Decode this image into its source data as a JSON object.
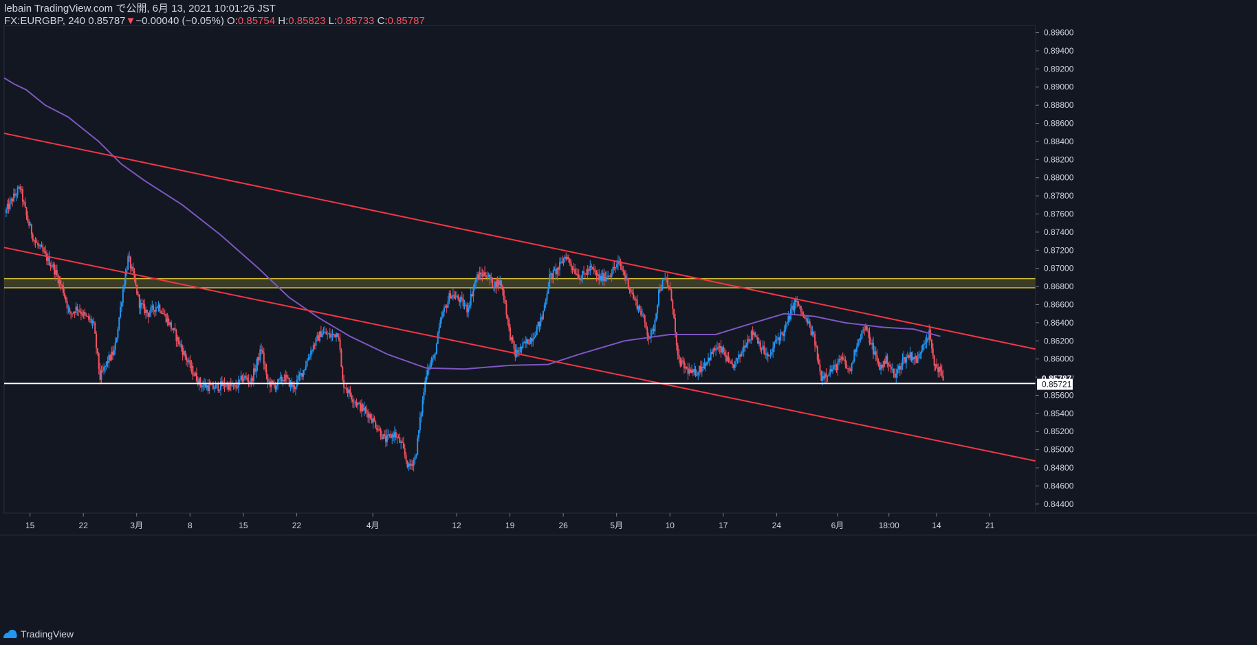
{
  "header": {
    "publish": "lebain TradingView.com で公開, 6月 13, 2021 10:01:26 JST",
    "symbol": "FX:EURGBP, 240",
    "last": "0.85787",
    "change_arrow": "▼",
    "change": "−0.00040 (−0.05%)",
    "open_label": "O:",
    "open": "0.85754",
    "high_label": "H:",
    "high": "0.85823",
    "low_label": "L:",
    "low": "0.85733",
    "close_label": "C:",
    "close": "0.85787"
  },
  "footer": {
    "brand": "TradingView",
    "logo_icon": "tradingview-logo-icon"
  },
  "colors": {
    "background": "#131722",
    "up": "#2196f3",
    "down": "#f7525f",
    "ma": "#7e57c2",
    "trendline": "#f23645",
    "zone": "#d4c233",
    "grid": "#2a2e39",
    "text": "#d1d4dc"
  },
  "chart_data": {
    "type": "candlestick",
    "symbol": "EURGBP",
    "timeframe": "240",
    "ylim": [
      0.843,
      0.8968
    ],
    "y_ticks": [
      "0.89600",
      "0.89400",
      "0.89200",
      "0.89000",
      "0.88800",
      "0.88600",
      "0.88400",
      "0.88200",
      "0.88000",
      "0.87800",
      "0.87600",
      "0.87400",
      "0.87200",
      "0.87000",
      "0.86800",
      "0.86600",
      "0.86400",
      "0.86200",
      "0.86000",
      "0.85800",
      "0.85600",
      "0.85400",
      "0.85200",
      "0.85000",
      "0.84800",
      "0.84600",
      "0.84400"
    ],
    "x_ticks": [
      {
        "label": "15",
        "day": 0
      },
      {
        "label": "22",
        "day": 7
      },
      {
        "label": "3月",
        "day": 14
      },
      {
        "label": "8",
        "day": 21
      },
      {
        "label": "15",
        "day": 28
      },
      {
        "label": "22",
        "day": 35
      },
      {
        "label": "4月",
        "day": 45
      },
      {
        "label": "12",
        "day": 56
      },
      {
        "label": "19",
        "day": 63
      },
      {
        "label": "26",
        "day": 70
      },
      {
        "label": "5月",
        "day": 77
      },
      {
        "label": "10",
        "day": 84
      },
      {
        "label": "17",
        "day": 91
      },
      {
        "label": "24",
        "day": 98
      },
      {
        "label": "6月",
        "day": 106
      },
      {
        "label": "18:00",
        "day": 112.75
      },
      {
        "label": "14",
        "day": 119
      },
      {
        "label": "21",
        "day": 126
      }
    ],
    "x_range_days": [
      -3.4,
      132
    ],
    "price_path": [
      {
        "day": -3.3,
        "price": 0.8761
      },
      {
        "day": -2.2,
        "price": 0.8778
      },
      {
        "day": -1.3,
        "price": 0.8789
      },
      {
        "day": -0.4,
        "price": 0.8755
      },
      {
        "day": 0.6,
        "price": 0.873
      },
      {
        "day": 1.8,
        "price": 0.8716
      },
      {
        "day": 3.0,
        "price": 0.8702
      },
      {
        "day": 4.4,
        "price": 0.8675
      },
      {
        "day": 5.2,
        "price": 0.8649
      },
      {
        "day": 6.2,
        "price": 0.8657
      },
      {
        "day": 7.3,
        "price": 0.8646
      },
      {
        "day": 8.3,
        "price": 0.864
      },
      {
        "day": 9.2,
        "price": 0.8579
      },
      {
        "day": 10.2,
        "price": 0.8598
      },
      {
        "day": 11.1,
        "price": 0.8609
      },
      {
        "day": 12.3,
        "price": 0.8683
      },
      {
        "day": 12.9,
        "price": 0.8712
      },
      {
        "day": 13.6,
        "price": 0.869
      },
      {
        "day": 14.4,
        "price": 0.866
      },
      {
        "day": 15.5,
        "price": 0.865
      },
      {
        "day": 16.8,
        "price": 0.866
      },
      {
        "day": 17.9,
        "price": 0.8645
      },
      {
        "day": 19.0,
        "price": 0.8628
      },
      {
        "day": 20.1,
        "price": 0.8608
      },
      {
        "day": 21.2,
        "price": 0.8588
      },
      {
        "day": 22.4,
        "price": 0.8572
      },
      {
        "day": 24.0,
        "price": 0.8568
      },
      {
        "day": 25.6,
        "price": 0.8572
      },
      {
        "day": 26.9,
        "price": 0.8568
      },
      {
        "day": 28.0,
        "price": 0.858
      },
      {
        "day": 29.0,
        "price": 0.8575
      },
      {
        "day": 30.4,
        "price": 0.8612
      },
      {
        "day": 31.1,
        "price": 0.8575
      },
      {
        "day": 32.1,
        "price": 0.857
      },
      {
        "day": 33.4,
        "price": 0.858
      },
      {
        "day": 34.6,
        "price": 0.8568
      },
      {
        "day": 36.0,
        "price": 0.859
      },
      {
        "day": 37.0,
        "price": 0.8612
      },
      {
        "day": 38.3,
        "price": 0.863
      },
      {
        "day": 39.4,
        "price": 0.8625
      },
      {
        "day": 40.5,
        "price": 0.863
      },
      {
        "day": 41.0,
        "price": 0.8575
      },
      {
        "day": 42.1,
        "price": 0.856
      },
      {
        "day": 43.2,
        "price": 0.8548
      },
      {
        "day": 44.4,
        "price": 0.854
      },
      {
        "day": 45.6,
        "price": 0.8525
      },
      {
        "day": 46.6,
        "price": 0.851
      },
      {
        "day": 47.8,
        "price": 0.8518
      },
      {
        "day": 48.8,
        "price": 0.8505
      },
      {
        "day": 49.7,
        "price": 0.848
      },
      {
        "day": 50.6,
        "price": 0.8492
      },
      {
        "day": 51.4,
        "price": 0.8545
      },
      {
        "day": 52.1,
        "price": 0.859
      },
      {
        "day": 53.0,
        "price": 0.86
      },
      {
        "day": 54.0,
        "price": 0.8645
      },
      {
        "day": 55.2,
        "price": 0.8672
      },
      {
        "day": 56.4,
        "price": 0.8665
      },
      {
        "day": 57.4,
        "price": 0.8655
      },
      {
        "day": 58.6,
        "price": 0.869
      },
      {
        "day": 59.8,
        "price": 0.8695
      },
      {
        "day": 60.8,
        "price": 0.8682
      },
      {
        "day": 61.8,
        "price": 0.8685
      },
      {
        "day": 62.4,
        "price": 0.866
      },
      {
        "day": 62.9,
        "price": 0.863
      },
      {
        "day": 63.7,
        "price": 0.8605
      },
      {
        "day": 64.8,
        "price": 0.8615
      },
      {
        "day": 66.0,
        "price": 0.8625
      },
      {
        "day": 67.2,
        "price": 0.8645
      },
      {
        "day": 68.2,
        "price": 0.869
      },
      {
        "day": 69.4,
        "price": 0.87
      },
      {
        "day": 70.3,
        "price": 0.8715
      },
      {
        "day": 71.3,
        "price": 0.87
      },
      {
        "day": 72.3,
        "price": 0.869
      },
      {
        "day": 73.6,
        "price": 0.87
      },
      {
        "day": 74.8,
        "price": 0.8688
      },
      {
        "day": 76.2,
        "price": 0.8695
      },
      {
        "day": 77.3,
        "price": 0.8706
      },
      {
        "day": 78.2,
        "price": 0.869
      },
      {
        "day": 79.2,
        "price": 0.8668
      },
      {
        "day": 80.3,
        "price": 0.865
      },
      {
        "day": 81.2,
        "price": 0.8625
      },
      {
        "day": 81.8,
        "price": 0.863
      },
      {
        "day": 82.6,
        "price": 0.8678
      },
      {
        "day": 83.5,
        "price": 0.8688
      },
      {
        "day": 84.3,
        "price": 0.8665
      },
      {
        "day": 85.0,
        "price": 0.86
      },
      {
        "day": 86.0,
        "price": 0.859
      },
      {
        "day": 87.0,
        "price": 0.8583
      },
      {
        "day": 88.0,
        "price": 0.859
      },
      {
        "day": 89.0,
        "price": 0.86
      },
      {
        "day": 90.0,
        "price": 0.8612
      },
      {
        "day": 91.0,
        "price": 0.8608
      },
      {
        "day": 92.0,
        "price": 0.859
      },
      {
        "day": 93.0,
        "price": 0.86
      },
      {
        "day": 94.0,
        "price": 0.862
      },
      {
        "day": 95.0,
        "price": 0.863
      },
      {
        "day": 96.2,
        "price": 0.861
      },
      {
        "day": 97.0,
        "price": 0.86
      },
      {
        "day": 98.0,
        "price": 0.8622
      },
      {
        "day": 99.0,
        "price": 0.863
      },
      {
        "day": 99.8,
        "price": 0.865
      },
      {
        "day": 100.5,
        "price": 0.8665
      },
      {
        "day": 101.3,
        "price": 0.865
      },
      {
        "day": 102.2,
        "price": 0.8638
      },
      {
        "day": 103.0,
        "price": 0.862
      },
      {
        "day": 103.8,
        "price": 0.858
      },
      {
        "day": 104.6,
        "price": 0.8585
      },
      {
        "day": 105.6,
        "price": 0.859
      },
      {
        "day": 106.6,
        "price": 0.86
      },
      {
        "day": 107.6,
        "price": 0.8585
      },
      {
        "day": 108.6,
        "price": 0.862
      },
      {
        "day": 109.6,
        "price": 0.8635
      },
      {
        "day": 110.5,
        "price": 0.8615
      },
      {
        "day": 111.5,
        "price": 0.859
      },
      {
        "day": 112.5,
        "price": 0.86
      },
      {
        "day": 113.5,
        "price": 0.858
      },
      {
        "day": 114.5,
        "price": 0.8598
      },
      {
        "day": 115.5,
        "price": 0.8605
      },
      {
        "day": 116.5,
        "price": 0.8598
      },
      {
        "day": 117.3,
        "price": 0.862
      },
      {
        "day": 118.1,
        "price": 0.8628
      },
      {
        "day": 118.6,
        "price": 0.8595
      },
      {
        "day": 119.2,
        "price": 0.859
      },
      {
        "day": 119.9,
        "price": 0.8579
      }
    ],
    "moving_average": {
      "name": "MA",
      "color": "#7e57c2",
      "points": [
        {
          "day": -3.4,
          "price": 0.891
        },
        {
          "day": -2,
          "price": 0.8903
        },
        {
          "day": -0.5,
          "price": 0.8897
        },
        {
          "day": 2,
          "price": 0.888
        },
        {
          "day": 5,
          "price": 0.8867
        },
        {
          "day": 9,
          "price": 0.884
        },
        {
          "day": 12,
          "price": 0.8815
        },
        {
          "day": 15,
          "price": 0.8797
        },
        {
          "day": 20,
          "price": 0.877
        },
        {
          "day": 25,
          "price": 0.8737
        },
        {
          "day": 30,
          "price": 0.87
        },
        {
          "day": 34,
          "price": 0.8668
        },
        {
          "day": 38,
          "price": 0.8645
        },
        {
          "day": 42,
          "price": 0.8625
        },
        {
          "day": 47,
          "price": 0.8605
        },
        {
          "day": 52,
          "price": 0.859
        },
        {
          "day": 57,
          "price": 0.8589
        },
        {
          "day": 63,
          "price": 0.8593
        },
        {
          "day": 68,
          "price": 0.8594
        },
        {
          "day": 72,
          "price": 0.8605
        },
        {
          "day": 78,
          "price": 0.862
        },
        {
          "day": 84,
          "price": 0.8627
        },
        {
          "day": 90,
          "price": 0.8627
        },
        {
          "day": 95,
          "price": 0.864
        },
        {
          "day": 99,
          "price": 0.865
        },
        {
          "day": 103,
          "price": 0.8647
        },
        {
          "day": 107,
          "price": 0.864
        },
        {
          "day": 112,
          "price": 0.8635
        },
        {
          "day": 116,
          "price": 0.8633
        },
        {
          "day": 119.5,
          "price": 0.8625
        }
      ]
    },
    "trend_lines": [
      {
        "name": "upper-trendline",
        "start": {
          "day": -3.4,
          "price": 0.8849
        },
        "end": {
          "day": 132,
          "price": 0.86109
        }
      },
      {
        "name": "lower-trendline",
        "start": {
          "day": -3.4,
          "price": 0.8723
        },
        "end": {
          "day": 132,
          "price": 0.84875
        }
      }
    ],
    "resistance_zone": {
      "top": 0.86887,
      "bottom": 0.86785
    },
    "horizontal_line": {
      "price": 0.8573
    },
    "last_price": {
      "value": 0.85787,
      "label": "0.85787"
    },
    "line_price": {
      "value": 0.85721,
      "label": "0.85721"
    }
  }
}
